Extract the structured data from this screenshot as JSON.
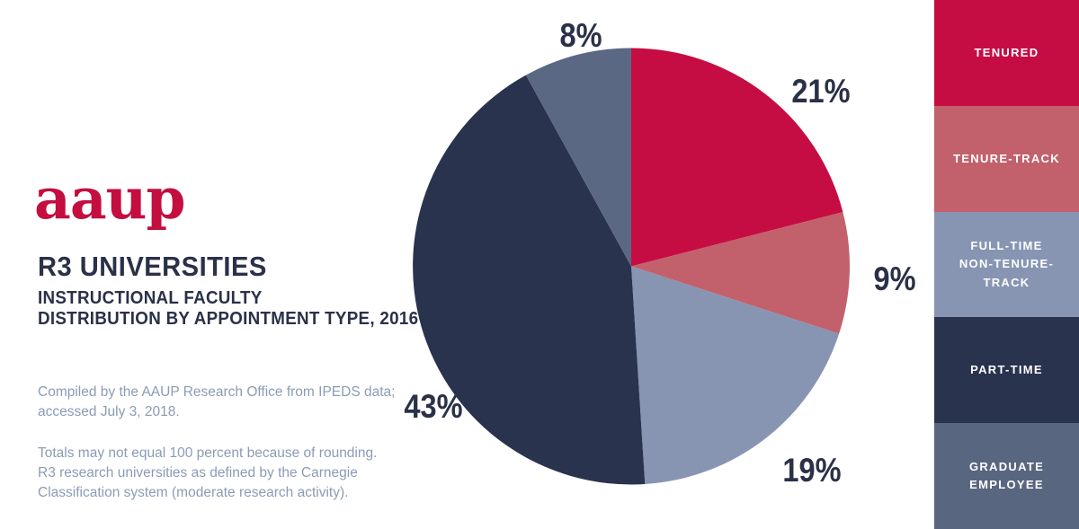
{
  "logo": {
    "text": "aaup",
    "color": "#C30E3F"
  },
  "header": {
    "title": "R3 UNIVERSITIES",
    "subtitle": "INSTRUCTIONAL FACULTY\nDISTRIBUTION BY APPOINTMENT TYPE, 2016"
  },
  "footnotes": {
    "para1": "Compiled by the AAUP Research Office from IPEDS data; accessed July 3, 2018.",
    "para2": "Totals may not equal 100 percent because of rounding. R3 research universities as defined by the Carnegie Classification system (moderate research activity)."
  },
  "chart_data": {
    "type": "pie",
    "title": "R3 Universities Instructional Faculty Distribution by Appointment Type, 2016",
    "start_angle_deg": 0,
    "direction": "clockwise",
    "legend_position": "right",
    "slices": [
      {
        "label": "Tenured",
        "value": 21,
        "display": "21%",
        "color": "#C60D43"
      },
      {
        "label": "Tenure-Track",
        "value": 9,
        "display": "9%",
        "color": "#C2616B"
      },
      {
        "label": "Full-Time Non-Tenure-Track",
        "value": 19,
        "display": "19%",
        "color": "#8795B3"
      },
      {
        "label": "Part-Time",
        "value": 43,
        "display": "43%",
        "color": "#29334E"
      },
      {
        "label": "Graduate Employee",
        "value": 8,
        "display": "8%",
        "color": "#5B6884"
      }
    ]
  },
  "legend": {
    "items": [
      {
        "label": "TENURED",
        "color": "#C60D43"
      },
      {
        "label": "TENURE-TRACK",
        "color": "#C2616B"
      },
      {
        "label": "FULL-TIME NON-TENURE-TRACK",
        "color": "#8795B3"
      },
      {
        "label": "PART-TIME",
        "color": "#29334E"
      },
      {
        "label": "GRADUATE EMPLOYEE",
        "color": "#596680"
      }
    ]
  }
}
